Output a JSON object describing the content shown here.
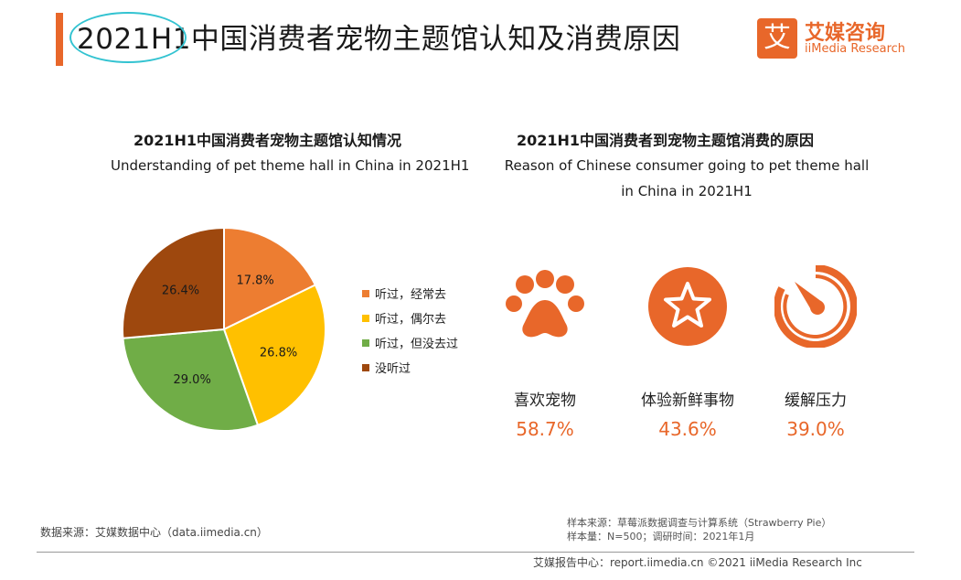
{
  "header": {
    "title": "2021H1中国消费者宠物主题馆认知及消费原因",
    "logo_mark": "艾",
    "logo_cn": "艾媒咨询",
    "logo_en": "iiMedia Research"
  },
  "left_section": {
    "title_cn": "2021H1中国消费者宠物主题馆认知情况",
    "title_en": "Understanding of pet theme hall in China in 2021H1"
  },
  "right_section": {
    "title_cn": "2021H1中国消费者到宠物主题馆消费的原因",
    "title_en_line1": "Reason of Chinese consumer going to pet theme hall",
    "title_en_line2": "in China in 2021H1"
  },
  "chart_data": [
    {
      "type": "pie",
      "title": "2021H1中国消费者宠物主题馆认知情况",
      "subtitle": "Understanding of pet theme hall in China in 2021H1",
      "categories": [
        "听过，经常去",
        "听过，偶尔去",
        "听过，但没去过",
        "没听过"
      ],
      "values": [
        17.8,
        26.8,
        29.0,
        26.4
      ],
      "labels": [
        "17.8%",
        "26.8%",
        "29.0%",
        "26.4%"
      ],
      "colors": [
        "#ED7D31",
        "#FFC000",
        "#70AD47",
        "#9E480E"
      ],
      "legend_position": "right"
    },
    {
      "type": "table",
      "title": "2021H1中国消费者到宠物主题馆消费的原因",
      "categories": [
        "喜欢宠物",
        "体验新鲜事物",
        "缓解压力"
      ],
      "values": [
        58.7,
        43.6,
        39.0
      ],
      "labels": [
        "58.7%",
        "43.6%",
        "39.0%"
      ],
      "icons": [
        "paw-icon",
        "star-icon",
        "timer-icon"
      ]
    }
  ],
  "footer": {
    "source": "数据来源：艾媒数据中心（data.iimedia.cn）",
    "sample_source": "样本来源：草莓派数据调查与计算系统（Strawberry Pie）",
    "sample_size": "样本量：N=500；调研时间：2021年1月",
    "copyright": "艾媒报告中心：report.iimedia.cn  ©2021  iiMedia Research  Inc"
  },
  "colors": {
    "accent": "#E8672A",
    "highlight": "#33C3D1"
  }
}
